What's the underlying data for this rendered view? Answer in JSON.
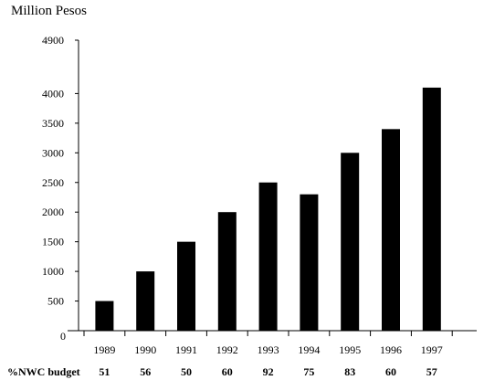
{
  "chart_data": {
    "type": "bar",
    "ylabel": "Million Pesos",
    "categories": [
      "1989",
      "1990",
      "1991",
      "1992",
      "1993",
      "1994",
      "1995",
      "1996",
      "1997"
    ],
    "values": [
      500,
      1000,
      1500,
      2000,
      2500,
      2300,
      3000,
      3400,
      4100
    ],
    "ylim": [
      0,
      4900
    ],
    "y_ticks": [
      "0",
      "500",
      "1000",
      "1500",
      "2000",
      "2500",
      "3000",
      "3500",
      "4000",
      "4900"
    ],
    "y_tick_values": [
      0,
      500,
      1000,
      1500,
      2000,
      2500,
      3000,
      3500,
      4000,
      4900
    ],
    "bar_color": "#000000",
    "grid": false,
    "footer_row": {
      "label": "%NWC budget",
      "values": [
        "51",
        "56",
        "50",
        "60",
        "92",
        "75",
        "83",
        "60",
        "57"
      ]
    }
  }
}
